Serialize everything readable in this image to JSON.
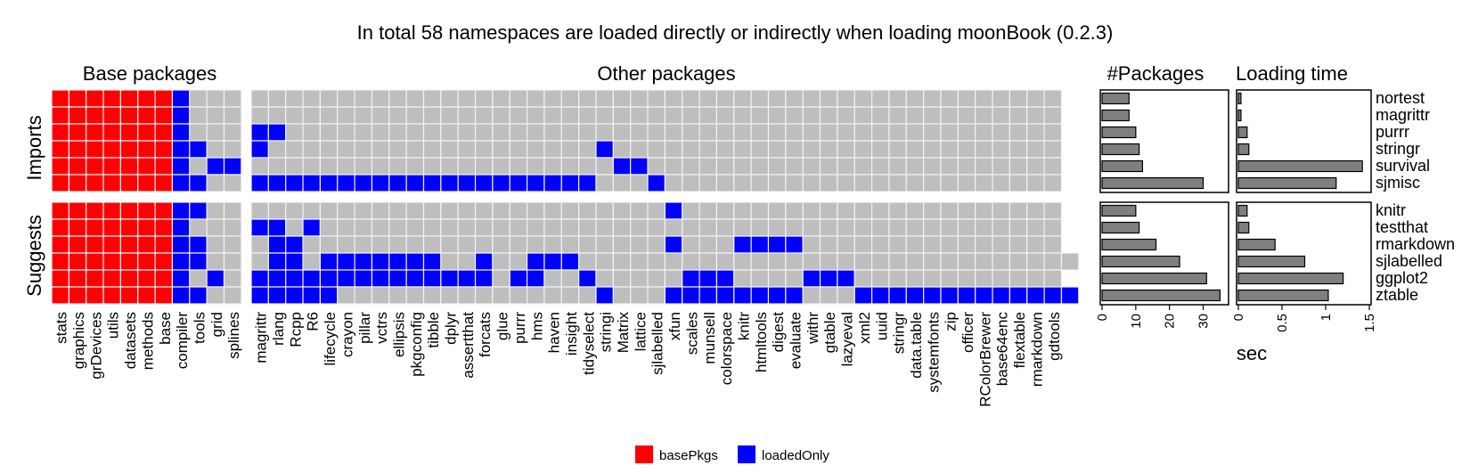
{
  "title": "In total 58 namespaces are loaded directly or indirectly when loading moonBook (0.2.3)",
  "legend": [
    {
      "name": "basePkgs",
      "color": "#ff0000"
    },
    {
      "name": "loadedOnly",
      "color": "#0000ff"
    }
  ],
  "colors": {
    "empty": "#bebebe",
    "cell_border": "#f2f2f2",
    "bar": "#7f7f7f"
  },
  "chart_data": [
    {
      "type": "heatmap",
      "panels": [
        "Base packages",
        "Other packages"
      ],
      "row_groups": [
        "Imports",
        "Suggests"
      ],
      "rows": [
        "nortest",
        "magrittr",
        "purrr",
        "stringr",
        "survival",
        "sjmisc",
        "knitr",
        "testthat",
        "rmarkdown",
        "sjlabelled",
        "ggplot2",
        "ztable"
      ],
      "base_columns": [
        "stats",
        "graphics",
        "grDevices",
        "utils",
        "datasets",
        "methods",
        "base",
        "compiler",
        "tools",
        "grid",
        "splines"
      ],
      "other_columns": [
        "magrittr",
        "rlang",
        "Rcpp",
        "R6",
        "lifecycle",
        "crayon",
        "pillar",
        "vctrs",
        "ellipsis",
        "pkgconfig",
        "tibble",
        "dplyr",
        "assertthat",
        "forcats",
        "glue",
        "purrr",
        "hms",
        "haven",
        "insight",
        "tidyselect",
        "stringi",
        "Matrix",
        "lattice",
        "sjlabelled",
        "xfun",
        "scales",
        "munsell",
        "colorspace",
        "knitr",
        "htmltools",
        "digest",
        "evaluate",
        "withr",
        "gtable",
        "lazyeval",
        "xml2",
        "uuid",
        "stringr",
        "data.table",
        "systemfonts",
        "zip",
        "officer",
        "RColorBrewer",
        "base64enc",
        "flextable",
        "rmarkdown",
        "gdtools"
      ],
      "base_cells": [
        "RRRRRRRB...",
        "RRRRRRRB...",
        "RRRRRRRB...",
        "RRRRRRRBB..",
        "RRRRRRRB.BB",
        "RRRRRRRBB..",
        "RRRRRRRBB..",
        "RRRRRRRB...",
        "RRRRRRRBB..",
        "RRRRRRRBB..",
        "RRRRRRRB.B.",
        "RRRRRRRBB.."
      ],
      "other_cells": [
        "...............................................",
        "...............................................",
        "BB.............................................",
        "B...................B..........................",
        ".....................BB........................",
        "BBBBBBBBBBBBBBBBBBBB...B.......................",
        "........................B......................",
        "BB.B...........................................",
        ".BB.....................B...BBBB...............",
        ".BB.BBBBBBB..B..BBB.............................",
        "BBBBBBBBBBBBBB.BB..B.....BBB....BBB............",
        "BBBBB...............B...BBBBBBBB...BBBBBBBBBBBBB"
      ]
    },
    {
      "type": "bar",
      "title": "#Packages",
      "categories": [
        "nortest",
        "magrittr",
        "purrr",
        "stringr",
        "survival",
        "sjmisc",
        "knitr",
        "testthat",
        "rmarkdown",
        "sjlabelled",
        "ggplot2",
        "ztable"
      ],
      "values": [
        8,
        8,
        10,
        11,
        12,
        30,
        10,
        11,
        16,
        23,
        31,
        35
      ],
      "xlim": [
        0,
        37
      ],
      "ticks": [
        "0",
        "10",
        "20",
        "30"
      ]
    },
    {
      "type": "bar",
      "title": "Loading time",
      "xlabel": "sec",
      "categories": [
        "nortest",
        "magrittr",
        "purrr",
        "stringr",
        "survival",
        "sjmisc",
        "knitr",
        "testthat",
        "rmarkdown",
        "sjlabelled",
        "ggplot2",
        "ztable"
      ],
      "values": [
        0.03,
        0.03,
        0.1,
        0.12,
        1.42,
        1.12,
        0.1,
        0.12,
        0.42,
        0.76,
        1.2,
        1.03
      ],
      "xlim": [
        0,
        1.5
      ],
      "ticks": [
        "0",
        "0.5",
        "1",
        "1.5"
      ]
    }
  ]
}
